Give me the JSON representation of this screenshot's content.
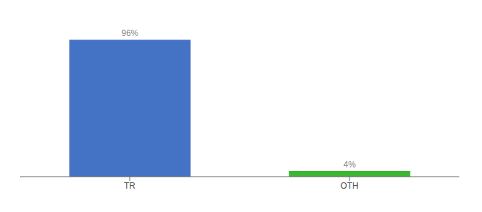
{
  "chart_data": {
    "type": "bar",
    "categories": [
      "TR",
      "OTH"
    ],
    "values": [
      96,
      4
    ],
    "value_labels": [
      "96%",
      "4%"
    ],
    "colors": [
      "#4472c4",
      "#3cb532"
    ],
    "ylim": [
      0,
      108
    ],
    "data_labels": true,
    "tick_labels": "x",
    "grid": false
  }
}
